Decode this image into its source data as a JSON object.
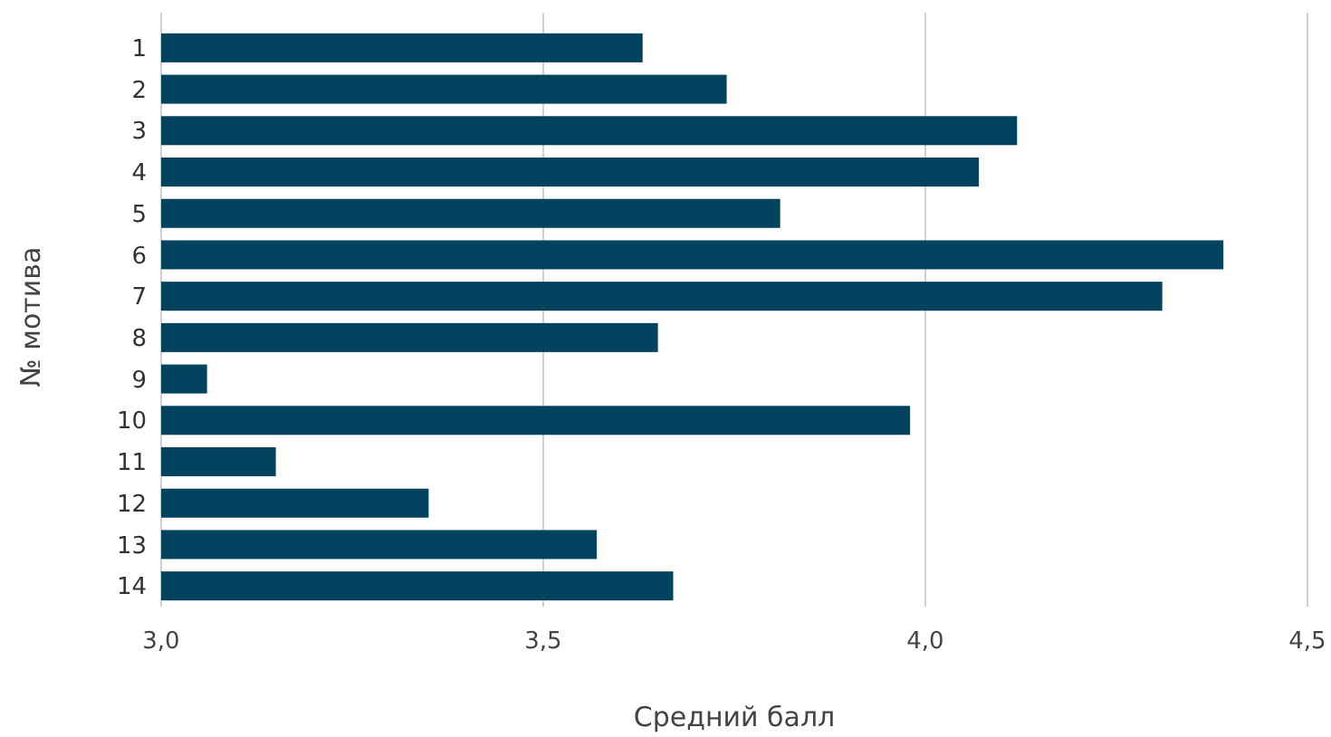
{
  "chart_data": {
    "type": "bar",
    "orientation": "horizontal",
    "xlabel": "Средний балл",
    "ylabel": "№ мотива",
    "categories": [
      "1",
      "2",
      "3",
      "4",
      "5",
      "6",
      "7",
      "8",
      "9",
      "10",
      "11",
      "12",
      "13",
      "14"
    ],
    "values": [
      3.63,
      3.74,
      4.12,
      4.07,
      3.81,
      4.39,
      4.31,
      3.65,
      3.06,
      3.98,
      3.15,
      3.35,
      3.57,
      3.67
    ],
    "color": "#01425e",
    "xlim": [
      3.0,
      4.5
    ],
    "xticks": [
      {
        "value": 3.0,
        "label": "3,0"
      },
      {
        "value": 3.5,
        "label": "3,5"
      },
      {
        "value": 4.0,
        "label": "4,0"
      },
      {
        "value": 4.5,
        "label": "4,5"
      }
    ],
    "grid": "x"
  }
}
